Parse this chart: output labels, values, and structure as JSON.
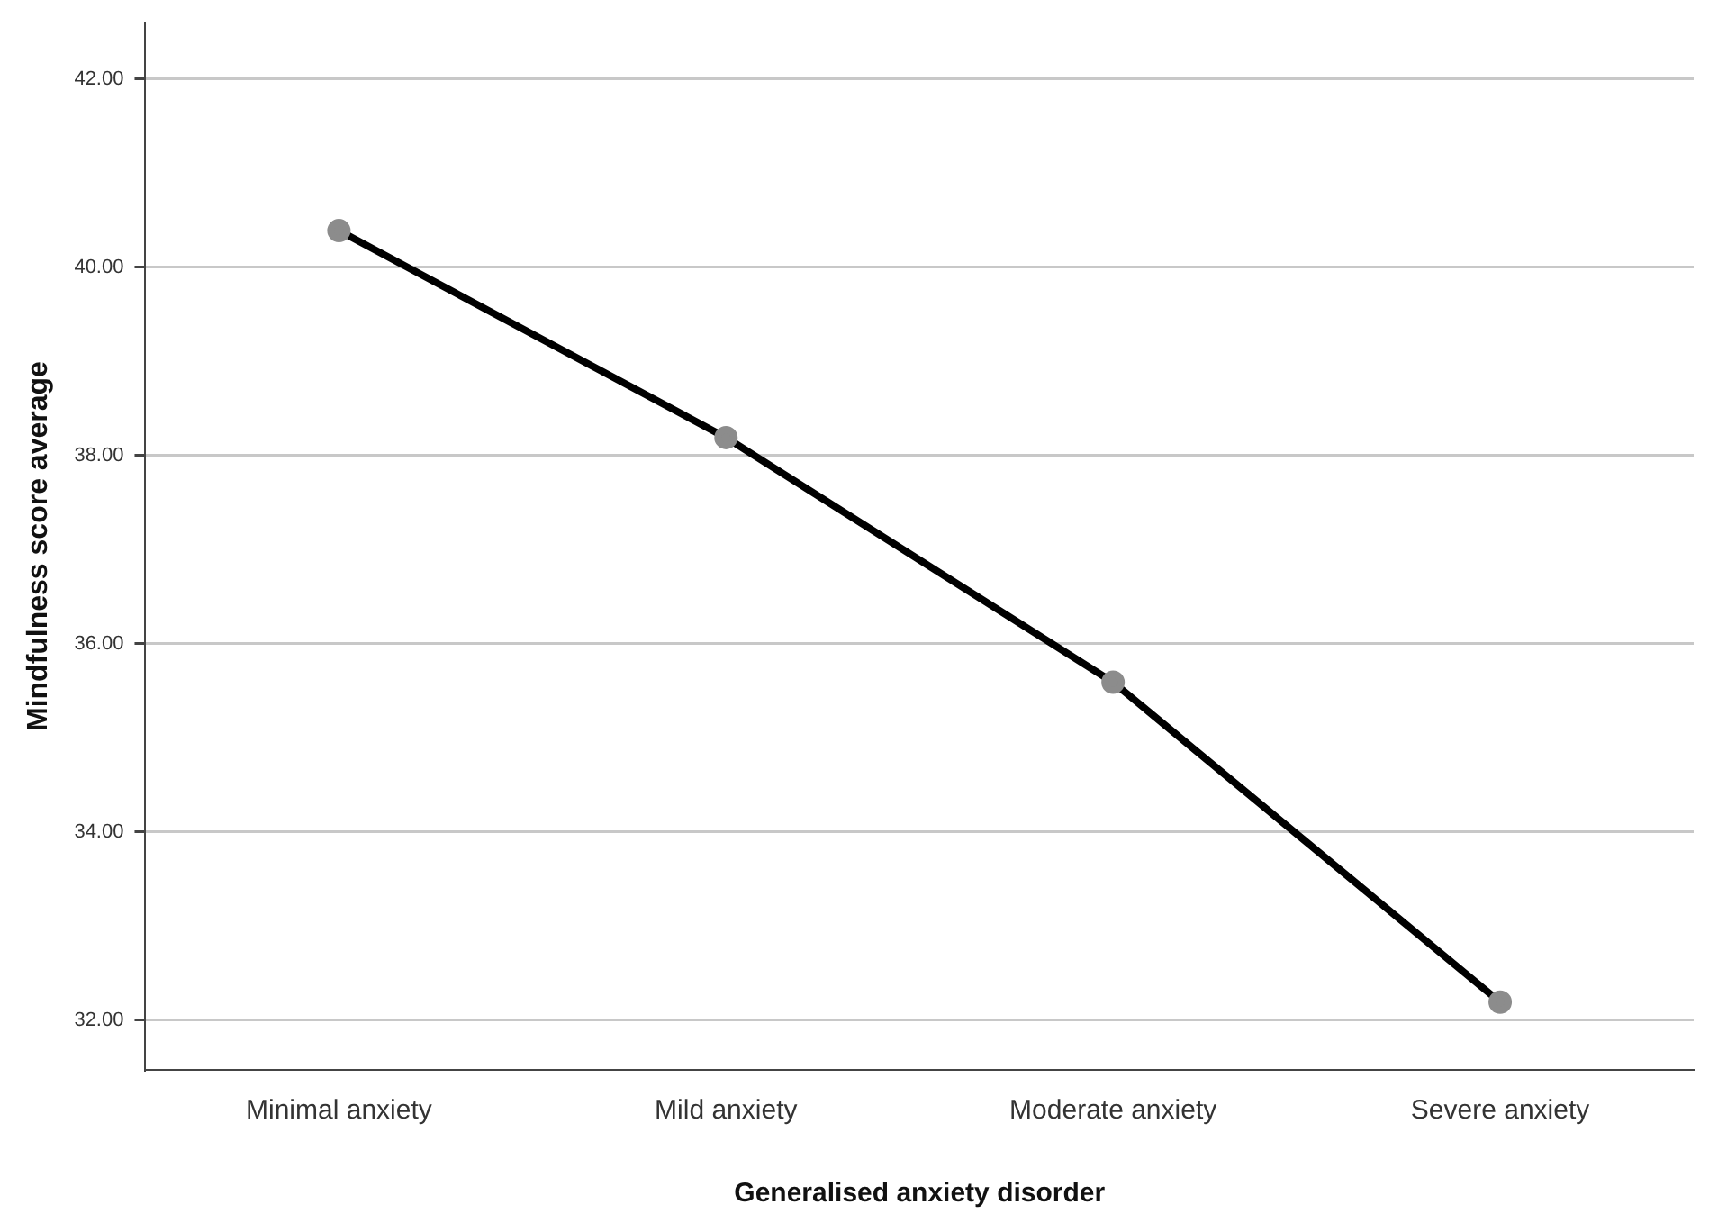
{
  "chart_data": {
    "type": "line",
    "xlabel": "Generalised anxiety disorder",
    "ylabel": "Mindfulness score average",
    "categories": [
      "Minimal anxiety",
      "Mild anxiety",
      "Moderate anxiety",
      "Severe anxiety"
    ],
    "series": [
      {
        "color": "#000000",
        "values": [
          40.39,
          38.19,
          35.59,
          32.19
        ]
      }
    ],
    "ylim": [
      31.47,
      42.6
    ],
    "yticks": [
      {
        "value": 32,
        "label": "32.00"
      },
      {
        "value": 34,
        "label": "34.00"
      },
      {
        "value": 36,
        "label": "36.00"
      },
      {
        "value": 38,
        "label": "38.00"
      },
      {
        "value": 40,
        "label": "40.00"
      },
      {
        "value": 42,
        "label": "42.00"
      }
    ],
    "grid": "y",
    "marker": "circle",
    "line_style": "solid",
    "legend": false
  }
}
